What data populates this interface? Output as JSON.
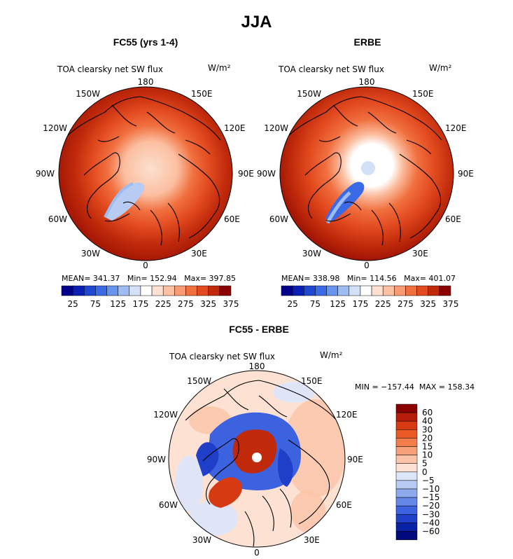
{
  "main_title": "JJA",
  "colors": {
    "abs_scale": [
      "#00008b",
      "#0a1fb4",
      "#1e48d2",
      "#3a6ae6",
      "#6693ec",
      "#9cbcf2",
      "#d2e0f8",
      "#ffffff",
      "#fde0cf",
      "#fbbfa1",
      "#f89a73",
      "#f1703f",
      "#e24a1f",
      "#c02a0b",
      "#8b0000"
    ],
    "diff_scale": [
      "#8b0000",
      "#b51d0a",
      "#d63a13",
      "#eb5a25",
      "#f27d4a",
      "#f7a17a",
      "#fbc4a9",
      "#fde2d3",
      "#dbe6fa",
      "#b8ccf3",
      "#8fabee",
      "#6588e8",
      "#3d62e0",
      "#1f3fc8",
      "#0a22a5",
      "#000a7a"
    ]
  },
  "panels": {
    "left": {
      "title": "FC55 (yrs 1-4)",
      "variable": "TOA clearsky net SW flux",
      "units": "W/m²",
      "stats": "MEAN= 341.37   Min= 152.94   Max= 397.85"
    },
    "right": {
      "title": "ERBE",
      "variable": "TOA clearsky net SW flux",
      "units": "W/m²",
      "stats": "MEAN= 338.98   Min= 114.56   Max= 401.07"
    },
    "diff": {
      "title": "FC55 - ERBE",
      "variable": "TOA clearsky net SW flux",
      "units": "W/m²",
      "minmax": "MIN = −157.44  MAX = 158.34"
    }
  },
  "lon_labels": {
    "l180": "180",
    "l150e": "150E",
    "l120e": "120E",
    "l90e": "90E",
    "l60e": "60E",
    "l30e": "30E",
    "l0": "0",
    "l30w": "30W",
    "l60w": "60W",
    "l90w": "90W",
    "l120w": "120W",
    "l150w": "150W"
  },
  "colorbar_abs_ticks": [
    "25",
    "75",
    "125",
    "175",
    "225",
    "275",
    "325",
    "375"
  ],
  "colorbar_diff_ticks": [
    "60",
    "40",
    "30",
    "20",
    "15",
    "10",
    "5",
    "0",
    "−5",
    "−10",
    "−15",
    "−20",
    "−30",
    "−40",
    "−60"
  ]
}
